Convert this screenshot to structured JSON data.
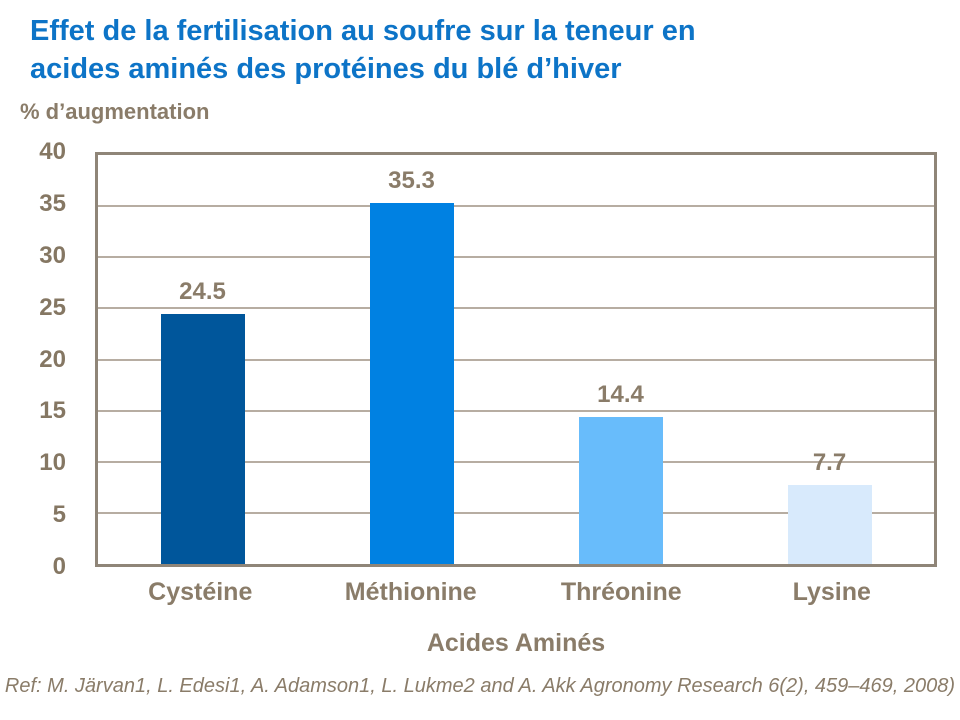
{
  "header": {
    "title_line1": "Effet de la fertilisation au soufre sur la teneur en",
    "title_line2": "acides aminés des protéines du blé d’hiver"
  },
  "chart_data": {
    "type": "bar",
    "title": "Effet de la fertilisation au soufre sur la teneur en acides aminés des protéines du blé d’hiver",
    "categories": [
      "Cystéine",
      "Méthionine",
      "Thréonine",
      "Lysine"
    ],
    "values": [
      24.5,
      35.3,
      14.4,
      7.7
    ],
    "data_labels": [
      "24.5",
      "35.3",
      "14.4",
      "7.7"
    ],
    "bar_colors": [
      "#00569b",
      "#0081e2",
      "#68bcfb",
      "#d8eafc"
    ],
    "xlabel": "Acides Aminés",
    "ylabel": "% d’augmentation",
    "ylim": [
      0,
      40
    ],
    "ytick_step": 5,
    "ytick_labels": [
      "40",
      "35",
      "30",
      "25",
      "20",
      "15",
      "10",
      "5",
      "0"
    ],
    "grid": "horizontal",
    "legend": "none"
  },
  "reference": "Ref: M. Järvan1, L. Edesi1, A. Adamson1, L. Lukme2 and A. Akk Agronomy Research 6(2), 459–469, 2008)",
  "colors": {
    "title_blue": "#0d74c7",
    "axis_text_brown": "#8a7c69",
    "plot_border": "#8f8578",
    "gridline": "#b7ada2"
  }
}
